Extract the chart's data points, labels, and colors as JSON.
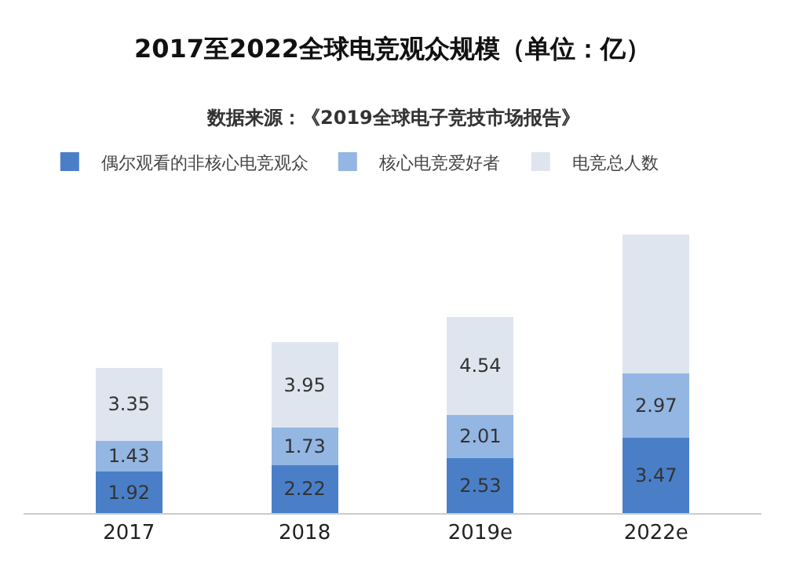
{
  "chart_data": {
    "type": "bar",
    "title": "2017至2022全球电竞观众规模（单位：亿）",
    "subtitle": "数据来源：《2019全球电子竞技市场报告》",
    "categories": [
      "2017",
      "2018",
      "2019e",
      "2022e"
    ],
    "stacked": true,
    "legend": "top left",
    "series": [
      {
        "name": "偶尔观看的非核心电竞观众",
        "color": "#4a7fc8",
        "values": [
          1.92,
          2.22,
          2.53,
          3.47
        ],
        "value_labels": [
          "1.92",
          "2.22",
          "2.53",
          "3.47"
        ]
      },
      {
        "name": "核心电竞爱好者",
        "color": "#93b6e3",
        "values": [
          1.43,
          1.73,
          2.01,
          2.97
        ],
        "value_labels": [
          "1.43",
          "1.73",
          "2.01",
          "2.97"
        ]
      },
      {
        "name": "电竞总人数",
        "color": "#dfe5ee",
        "values": [
          3.35,
          3.95,
          4.54,
          6.44
        ],
        "value_labels": [
          "3.35",
          "3.95",
          "4.54",
          null
        ]
      }
    ]
  }
}
